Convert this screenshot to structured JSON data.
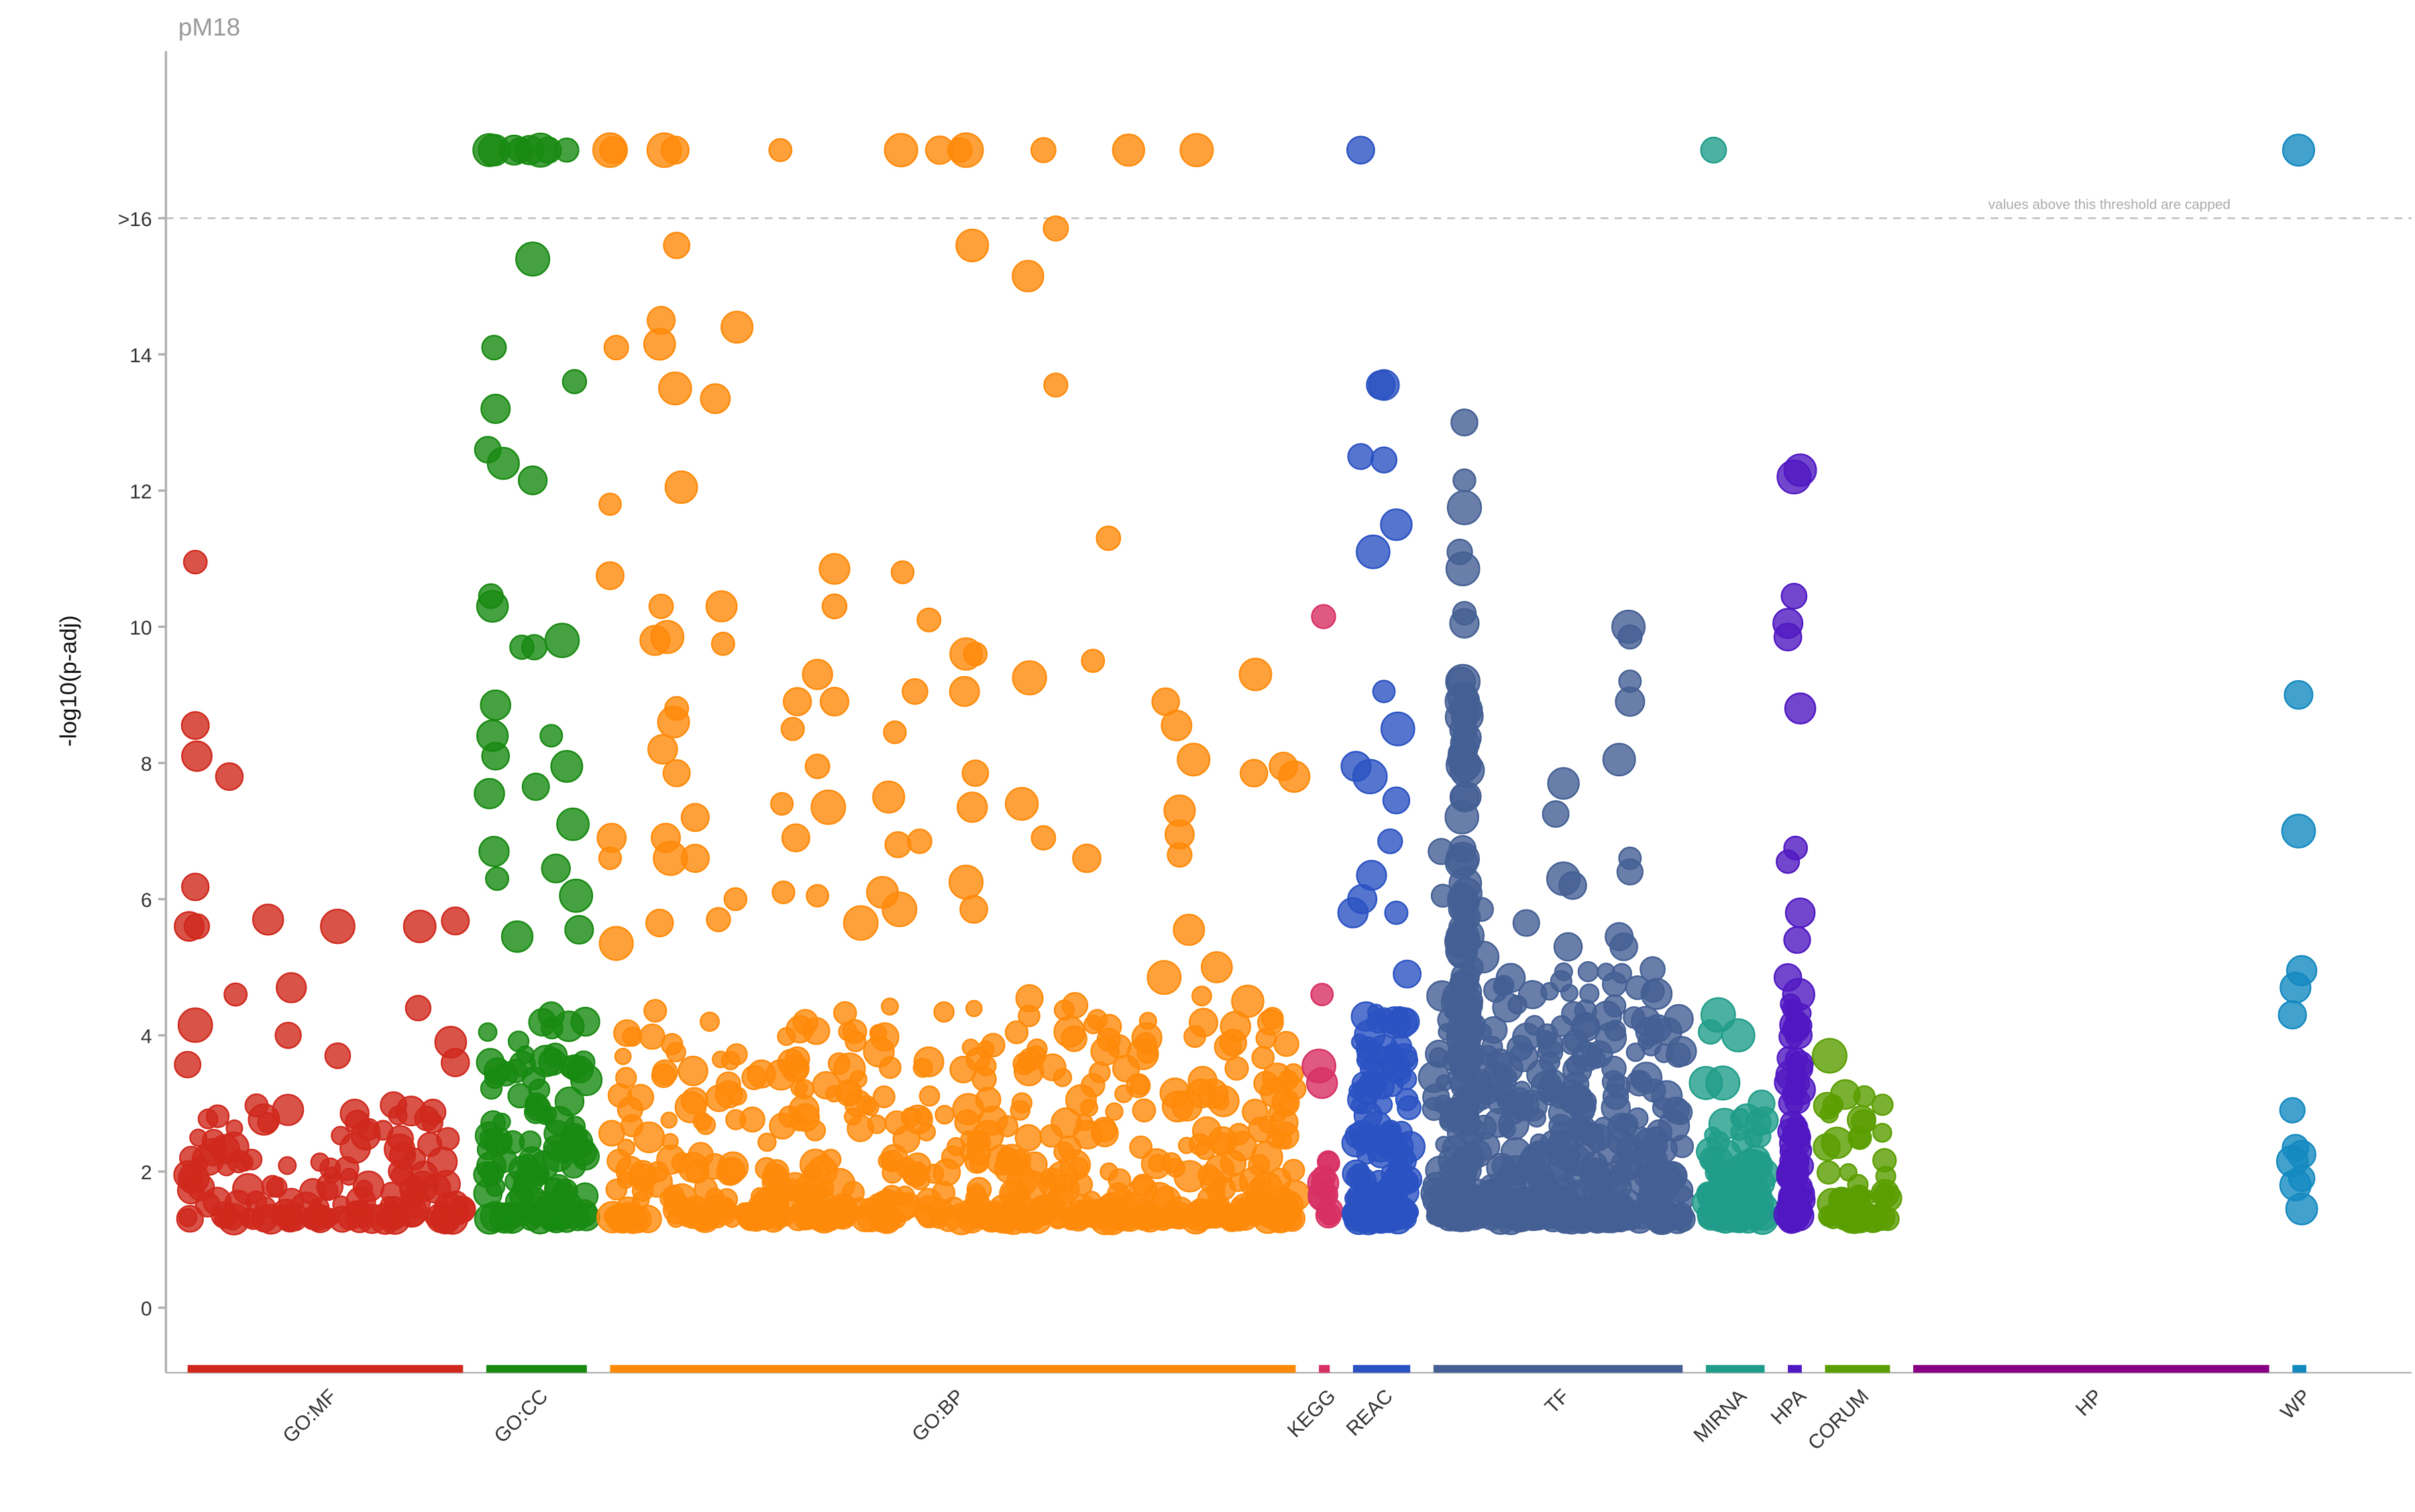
{
  "title": "pM18",
  "chart_data": {
    "type": "scatter",
    "subtype": "manhattan",
    "title": "pM18",
    "xlabel": "",
    "ylabel": "-log10(p-adj)",
    "ylim": [
      -1,
      18.5
    ],
    "yticks": [
      {
        "value": 0,
        "label": "0"
      },
      {
        "value": 2,
        "label": "2"
      },
      {
        "value": 4,
        "label": "4"
      },
      {
        "value": 6,
        "label": "6"
      },
      {
        "value": 8,
        "label": "8"
      },
      {
        "value": 10,
        "label": "10"
      },
      {
        "value": 12,
        "label": "12"
      },
      {
        "value": 14,
        "label": "14"
      },
      {
        "value": 16,
        "label": ">16"
      }
    ],
    "cap_threshold": 16,
    "capped_display_value": 17,
    "cap_note": "values above this threshold are capped",
    "grid": false,
    "sources": [
      {
        "name": "GO:MF",
        "color": "#d0281c",
        "start": 0,
        "end": 178,
        "background": {
          "n": 130,
          "max": 3.0
        },
        "points": [
          [
            5,
            10.95
          ],
          [
            5,
            8.55
          ],
          [
            6,
            8.1
          ],
          [
            27,
            7.8
          ],
          [
            5,
            6.18
          ],
          [
            1,
            5.6
          ],
          [
            6,
            5.6
          ],
          [
            52,
            5.7
          ],
          [
            97,
            5.6
          ],
          [
            150,
            5.6
          ],
          [
            173,
            5.68
          ],
          [
            31,
            4.6
          ],
          [
            67,
            4.7
          ],
          [
            5,
            4.15
          ],
          [
            65,
            4.0
          ],
          [
            97,
            3.7
          ],
          [
            0,
            3.57
          ],
          [
            173,
            3.6
          ],
          [
            170,
            3.9
          ],
          [
            149,
            4.4
          ]
        ]
      },
      {
        "name": "GO:CC",
        "color": "#188a12",
        "start": 193,
        "end": 258,
        "background": {
          "n": 110,
          "max": 4.2
        },
        "points": [
          [
            2,
            17
          ],
          [
            5,
            17
          ],
          [
            18,
            17
          ],
          [
            22,
            17
          ],
          [
            28,
            17
          ],
          [
            35,
            17
          ],
          [
            40,
            17
          ],
          [
            52,
            17
          ],
          [
            30,
            15.4
          ],
          [
            5,
            14.1
          ],
          [
            57,
            13.6
          ],
          [
            6,
            13.2
          ],
          [
            1,
            12.6
          ],
          [
            11,
            12.4
          ],
          [
            30,
            12.15
          ],
          [
            3,
            10.45
          ],
          [
            4,
            10.3
          ],
          [
            31,
            9.7
          ],
          [
            23,
            9.7
          ],
          [
            49,
            9.8
          ],
          [
            6,
            8.85
          ],
          [
            4,
            8.4
          ],
          [
            42,
            8.4
          ],
          [
            6,
            8.1
          ],
          [
            52,
            7.95
          ],
          [
            32,
            7.65
          ],
          [
            2,
            7.55
          ],
          [
            56,
            7.1
          ],
          [
            45,
            6.45
          ],
          [
            5,
            6.7
          ],
          [
            7,
            6.3
          ],
          [
            58,
            6.05
          ],
          [
            60,
            5.55
          ],
          [
            20,
            5.45
          ],
          [
            64,
            4.2
          ],
          [
            42,
            4.3
          ]
        ]
      },
      {
        "name": "GO:BP",
        "color": "#ff8a0a",
        "start": 273,
        "end": 716,
        "background": {
          "n": 520,
          "max": 4.6
        },
        "points": [
          [
            0,
            17
          ],
          [
            2,
            17
          ],
          [
            35,
            17
          ],
          [
            42,
            17
          ],
          [
            110,
            17
          ],
          [
            188,
            17
          ],
          [
            213,
            17
          ],
          [
            226,
            17
          ],
          [
            230,
            17
          ],
          [
            280,
            17
          ],
          [
            335,
            17
          ],
          [
            379,
            17
          ],
          [
            43,
            15.6
          ],
          [
            234,
            15.6
          ],
          [
            288,
            15.85
          ],
          [
            270,
            15.15
          ],
          [
            82,
            14.4
          ],
          [
            33,
            14.5
          ],
          [
            32,
            14.15
          ],
          [
            4,
            14.1
          ],
          [
            288,
            13.55
          ],
          [
            42,
            13.5
          ],
          [
            68,
            13.35
          ],
          [
            46,
            12.05
          ],
          [
            0,
            11.8
          ],
          [
            322,
            11.3
          ],
          [
            145,
            10.85
          ],
          [
            189,
            10.8
          ],
          [
            0,
            10.75
          ],
          [
            33,
            10.3
          ],
          [
            72,
            10.3
          ],
          [
            206,
            10.1
          ],
          [
            145,
            10.3
          ],
          [
            37,
            9.85
          ],
          [
            29,
            9.8
          ],
          [
            73,
            9.75
          ],
          [
            230,
            9.6
          ],
          [
            236,
            9.6
          ],
          [
            312,
            9.5
          ],
          [
            271,
            9.25
          ],
          [
            134,
            9.3
          ],
          [
            417,
            9.3
          ],
          [
            197,
            9.05
          ],
          [
            229,
            9.05
          ],
          [
            145,
            8.9
          ],
          [
            359,
            8.9
          ],
          [
            121,
            8.9
          ],
          [
            43,
            8.8
          ],
          [
            366,
            8.55
          ],
          [
            184,
            8.45
          ],
          [
            41,
            8.6
          ],
          [
            118,
            8.5
          ],
          [
            34,
            8.2
          ],
          [
            377,
            8.05
          ],
          [
            134,
            7.95
          ],
          [
            236,
            7.85
          ],
          [
            43,
            7.85
          ],
          [
            416,
            7.85
          ],
          [
            435,
            7.95
          ],
          [
            442,
            7.8
          ],
          [
            180,
            7.5
          ],
          [
            266,
            7.4
          ],
          [
            111,
            7.4
          ],
          [
            234,
            7.35
          ],
          [
            368,
            7.3
          ],
          [
            141,
            7.35
          ],
          [
            55,
            7.2
          ],
          [
            1,
            6.9
          ],
          [
            36,
            6.9
          ],
          [
            280,
            6.9
          ],
          [
            120,
            6.9
          ],
          [
            368,
            6.95
          ],
          [
            186,
            6.8
          ],
          [
            200,
            6.85
          ],
          [
            308,
            6.6
          ],
          [
            55,
            6.6
          ],
          [
            368,
            6.65
          ],
          [
            0,
            6.6
          ],
          [
            39,
            6.6
          ],
          [
            134,
            6.05
          ],
          [
            112,
            6.1
          ],
          [
            176,
            6.1
          ],
          [
            81,
            6.0
          ],
          [
            230,
            6.25
          ],
          [
            187,
            5.85
          ],
          [
            235,
            5.85
          ],
          [
            162,
            5.65
          ],
          [
            374,
            5.55
          ],
          [
            70,
            5.7
          ],
          [
            32,
            5.65
          ],
          [
            392,
            5.0
          ],
          [
            4,
            5.35
          ],
          [
            358,
            4.85
          ],
          [
            412,
            4.5
          ]
        ]
      },
      {
        "name": "KEGG",
        "color": "#d73064",
        "start": 731,
        "end": 738,
        "background": {
          "n": 12,
          "max": 2.4
        },
        "points": [
          [
            3,
            10.15
          ],
          [
            2,
            4.6
          ],
          [
            0,
            3.55
          ],
          [
            2,
            3.3
          ]
        ]
      },
      {
        "name": "REAC",
        "color": "#2a52c2",
        "start": 753,
        "end": 790,
        "background": {
          "n": 130,
          "max": 4.5
        },
        "points": [
          [
            5,
            17
          ],
          [
            18,
            13.55
          ],
          [
            20,
            13.55
          ],
          [
            5,
            12.5
          ],
          [
            20,
            12.45
          ],
          [
            28,
            11.5
          ],
          [
            13,
            11.1
          ],
          [
            20,
            9.05
          ],
          [
            29,
            8.5
          ],
          [
            2,
            7.95
          ],
          [
            11,
            7.8
          ],
          [
            28,
            7.45
          ],
          [
            24,
            6.85
          ],
          [
            12,
            6.35
          ],
          [
            6,
            6.0
          ],
          [
            0,
            5.8
          ],
          [
            28,
            5.8
          ],
          [
            35,
            4.9
          ]
        ]
      },
      {
        "name": "TF",
        "color": "#445f94",
        "start": 805,
        "end": 966,
        "background": {
          "n": 420,
          "max": 5.0
        },
        "dense_columns": [
          {
            "x": 20,
            "n": 70,
            "max": 9.2
          }
        ],
        "points": [
          [
            20,
            13.0
          ],
          [
            20,
            12.15
          ],
          [
            20,
            11.75
          ],
          [
            17,
            11.1
          ],
          [
            19,
            10.85
          ],
          [
            20,
            10.2
          ],
          [
            20,
            10.05
          ],
          [
            18,
            9.2
          ],
          [
            126,
            10.0
          ],
          [
            127,
            9.85
          ],
          [
            127,
            9.2
          ],
          [
            127,
            8.9
          ],
          [
            120,
            8.05
          ],
          [
            84,
            7.7
          ],
          [
            79,
            7.25
          ],
          [
            127,
            6.6
          ],
          [
            127,
            6.4
          ],
          [
            84,
            6.3
          ],
          [
            90,
            6.2
          ],
          [
            5,
            6.7
          ],
          [
            6,
            6.05
          ],
          [
            31,
            5.85
          ],
          [
            60,
            5.65
          ],
          [
            120,
            5.45
          ],
          [
            87,
            5.3
          ],
          [
            123,
            5.3
          ],
          [
            117,
            4.75
          ],
          [
            32,
            5.15
          ]
        ]
      },
      {
        "name": "MIRNA",
        "color": "#209d8a",
        "start": 981,
        "end": 1019,
        "background": {
          "n": 110,
          "max": 2.8
        },
        "points": [
          [
            5,
            17
          ],
          [
            8,
            4.3
          ],
          [
            3,
            4.05
          ],
          [
            21,
            4.0
          ],
          [
            0,
            3.3
          ],
          [
            11,
            3.3
          ],
          [
            36,
            3.0
          ]
        ]
      },
      {
        "name": "HPA",
        "color": "#5018c2",
        "start": 1034,
        "end": 1043,
        "background": {
          "n": 90,
          "max": 4.5
        },
        "points": [
          [
            8,
            12.3
          ],
          [
            4,
            12.2
          ],
          [
            4,
            10.45
          ],
          [
            0,
            10.05
          ],
          [
            0,
            9.85
          ],
          [
            8,
            8.8
          ],
          [
            5,
            6.75
          ],
          [
            0,
            6.55
          ],
          [
            8,
            5.8
          ],
          [
            6,
            5.4
          ],
          [
            0,
            4.85
          ],
          [
            7,
            4.6
          ]
        ]
      },
      {
        "name": "CORUM",
        "color": "#5a9e00",
        "start": 1058,
        "end": 1100,
        "background": {
          "n": 45,
          "max": 3.2
        },
        "points": [
          [
            3,
            3.7
          ]
        ]
      },
      {
        "name": "HP",
        "color": "#870083",
        "start": 1115,
        "end": 1345,
        "background": {
          "n": 0,
          "max": 0
        },
        "points": []
      },
      {
        "name": "WP",
        "color": "#1489c0",
        "start": 1360,
        "end": 1369,
        "background": {
          "n": 0,
          "max": 0
        },
        "points": [
          [
            4,
            17
          ],
          [
            4,
            9.0
          ],
          [
            4,
            7.0
          ],
          [
            6,
            4.95
          ],
          [
            2,
            4.7
          ],
          [
            0,
            4.3
          ],
          [
            0,
            2.9
          ],
          [
            2,
            2.35
          ],
          [
            6,
            2.25
          ],
          [
            0,
            2.15
          ],
          [
            6,
            1.9
          ],
          [
            2,
            1.8
          ],
          [
            6,
            1.45
          ]
        ]
      }
    ]
  }
}
